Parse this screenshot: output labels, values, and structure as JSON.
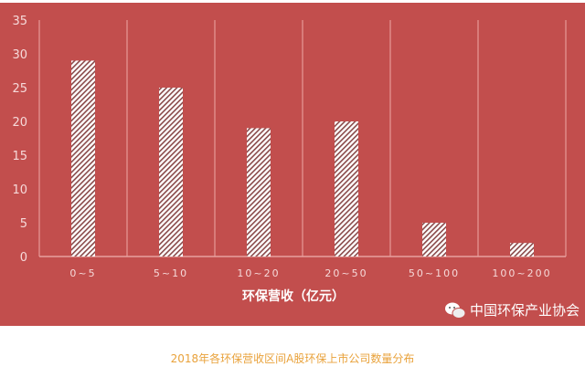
{
  "chart_data": {
    "type": "bar",
    "categories": [
      "0~5",
      "5~10",
      "10~20",
      "20~50",
      "50~100",
      "100~200"
    ],
    "values": [
      29,
      25,
      19,
      20,
      5,
      2
    ],
    "xlabel": "环保营收（亿元）",
    "ylabel": "",
    "ylim": [
      0,
      35
    ],
    "yticks": [
      0,
      5,
      10,
      15,
      20,
      25,
      30,
      35
    ],
    "grid": "vertical category separators",
    "bar_fill": "white diagonal hatch",
    "background": "#c24e4d"
  },
  "watermark": "中国环保产业协会",
  "caption": "2018年各环保营收区间A股环保上市公司数量分布"
}
